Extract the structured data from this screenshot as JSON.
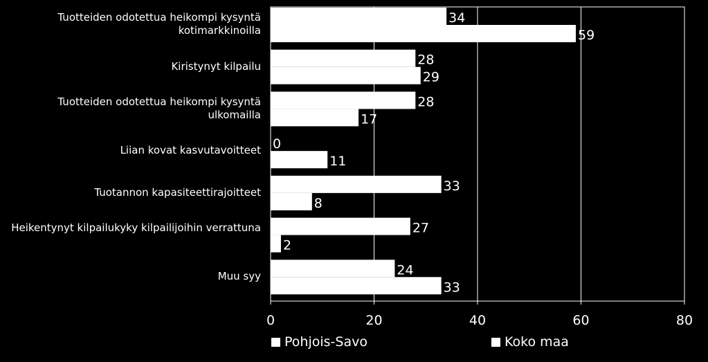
{
  "chart_data": {
    "type": "bar",
    "orientation": "horizontal",
    "categories": [
      "Tuotteiden odotettua heikompi kysyntä kotimarkkinoilla",
      "Kiristynyt kilpailu",
      "Tuotteiden odotettua heikompi kysyntä ulkomailla",
      "Liian kovat kasvutavoitteet",
      "Tuotannon kapasiteettirajoitteet",
      "Heikentynyt kilpailukyky kilpailijoihin verrattuna",
      "Muu syy"
    ],
    "series": [
      {
        "name": "Pohjois-Savo",
        "values": [
          34,
          28,
          28,
          0,
          33,
          27,
          24
        ]
      },
      {
        "name": "Koko maa",
        "values": [
          59,
          29,
          17,
          11,
          8,
          2,
          33
        ]
      }
    ],
    "xlim": [
      0,
      80
    ],
    "xticks": [
      "0",
      "20",
      "40",
      "60",
      "80"
    ],
    "grid": true,
    "legend_position": "bottom",
    "colors": {
      "background": "#000000",
      "bar": "#ffffff",
      "grid": "#ffffff",
      "text": "#ffffff"
    }
  }
}
